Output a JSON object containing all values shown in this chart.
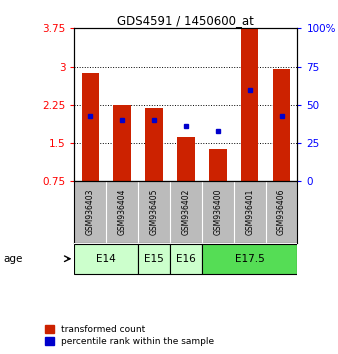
{
  "title": "GDS4591 / 1450600_at",
  "samples": [
    "GSM936403",
    "GSM936404",
    "GSM936405",
    "GSM936402",
    "GSM936400",
    "GSM936401",
    "GSM936406"
  ],
  "transformed_count": [
    2.88,
    2.25,
    2.18,
    1.62,
    1.38,
    3.75,
    2.95
  ],
  "percentile_rank_pct": [
    43,
    40,
    40,
    36,
    33,
    60,
    43
  ],
  "age_group_spans": [
    {
      "label": "E14",
      "start": 0,
      "end": 2,
      "color": "#ccffcc"
    },
    {
      "label": "E15",
      "start": 2,
      "end": 3,
      "color": "#ccffcc"
    },
    {
      "label": "E16",
      "start": 3,
      "end": 4,
      "color": "#ccffcc"
    },
    {
      "label": "E17.5",
      "start": 4,
      "end": 7,
      "color": "#55dd55"
    }
  ],
  "ylim": [
    0.75,
    3.75
  ],
  "yticks": [
    0.75,
    1.5,
    2.25,
    3.0,
    3.75
  ],
  "ytick_labels": [
    "0.75",
    "1.5",
    "2.25",
    "3",
    "3.75"
  ],
  "right_yticks": [
    0,
    25,
    50,
    75,
    100
  ],
  "right_ytick_labels": [
    "0",
    "25",
    "50",
    "75",
    "100%"
  ],
  "bar_color": "#cc2200",
  "marker_color": "#0000cc",
  "bar_width": 0.55,
  "bg_color": "#ffffff",
  "sample_bg_color": "#bbbbbb",
  "legend_items": [
    {
      "label": "transformed count",
      "color": "#cc2200"
    },
    {
      "label": "percentile rank within the sample",
      "color": "#0000cc"
    }
  ]
}
